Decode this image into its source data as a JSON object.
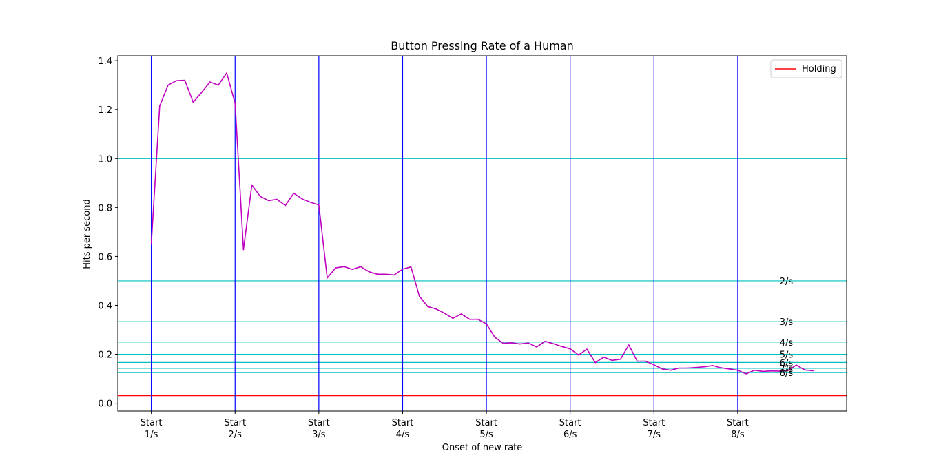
{
  "chart_data": {
    "type": "line",
    "title": "Button Pressing Rate of a Human",
    "xlabel": "Onset of new rate",
    "ylabel": "Hits per second",
    "ylim": [
      -0.032,
      1.42
    ],
    "yticks": [
      "0.0",
      "0.2",
      "0.4",
      "0.6",
      "0.8",
      "1.0",
      "1.2",
      "1.4"
    ],
    "ytick_values": [
      0.0,
      0.2,
      0.4,
      0.6,
      0.8,
      1.0,
      1.2,
      1.4
    ],
    "xlim": [
      -4,
      83
    ],
    "xticks": [
      {
        "x": 0,
        "line1": "Start",
        "line2": "1/s"
      },
      {
        "x": 10,
        "line1": "Start",
        "line2": "2/s"
      },
      {
        "x": 20,
        "line1": "Start",
        "line2": "3/s"
      },
      {
        "x": 30,
        "line1": "Start",
        "line2": "4/s"
      },
      {
        "x": 40,
        "line1": "Start",
        "line2": "5/s"
      },
      {
        "x": 50,
        "line1": "Start",
        "line2": "6/s"
      },
      {
        "x": 60,
        "line1": "Start",
        "line2": "7/s"
      },
      {
        "x": 70,
        "line1": "Start",
        "line2": "8/s"
      }
    ],
    "grid": false,
    "legend": {
      "placement": "top-right",
      "entries": [
        {
          "label": "Holding",
          "color": "#ff0000"
        }
      ]
    },
    "holding_level": 0.031,
    "holding_color": "#ff0000",
    "reference_lines": [
      {
        "label": "2/s",
        "y": 0.5
      },
      {
        "label": "3/s",
        "y": 0.3333
      },
      {
        "label": "4/s",
        "y": 0.25
      },
      {
        "label": "5/s",
        "y": 0.2
      },
      {
        "label": "6/s",
        "y": 0.1667
      },
      {
        "label": "7/s",
        "y": 0.1429
      },
      {
        "label": "8/s",
        "y": 0.125
      }
    ],
    "reference_extra_y": 1.0,
    "reference_color": "#00bfbf",
    "reference_label_x": 75,
    "onset_lines_x": [
      0,
      10,
      20,
      30,
      40,
      50,
      60,
      70
    ],
    "onset_color": "#0000ff",
    "series": [
      {
        "color": "#bf00bf",
        "x": [
          0,
          1,
          2,
          3,
          4,
          5,
          6,
          7,
          8,
          9,
          10,
          11,
          12,
          13,
          14,
          15,
          16,
          17,
          18,
          19,
          20,
          21,
          22,
          23,
          24,
          25,
          26,
          27,
          28,
          29,
          30,
          31,
          32,
          33,
          34,
          35,
          36,
          37,
          38,
          39,
          40,
          41,
          42,
          43,
          44,
          45,
          46,
          47,
          48,
          49,
          50,
          51,
          52,
          53,
          54,
          55,
          56,
          57,
          58,
          59,
          60,
          61,
          62,
          63,
          64,
          65,
          66,
          67,
          68,
          69,
          70,
          71,
          72,
          73,
          74,
          75,
          76,
          77,
          78,
          79
        ],
        "y": [
          0.65,
          1.215,
          1.3,
          1.318,
          1.32,
          1.23,
          1.27,
          1.313,
          1.3,
          1.35,
          1.225,
          0.628,
          0.892,
          0.845,
          0.828,
          0.833,
          0.808,
          0.858,
          0.835,
          0.821,
          0.81,
          0.512,
          0.553,
          0.558,
          0.547,
          0.558,
          0.537,
          0.527,
          0.527,
          0.524,
          0.548,
          0.557,
          0.437,
          0.395,
          0.385,
          0.368,
          0.347,
          0.365,
          0.343,
          0.343,
          0.324,
          0.27,
          0.245,
          0.247,
          0.242,
          0.246,
          0.23,
          0.253,
          0.243,
          0.232,
          0.222,
          0.197,
          0.221,
          0.166,
          0.188,
          0.175,
          0.18,
          0.238,
          0.172,
          0.172,
          0.157,
          0.14,
          0.135,
          0.144,
          0.144,
          0.146,
          0.149,
          0.154,
          0.145,
          0.14,
          0.135,
          0.12,
          0.135,
          0.13,
          0.132,
          0.131,
          0.134,
          0.156,
          0.136,
          0.133
        ]
      }
    ]
  }
}
